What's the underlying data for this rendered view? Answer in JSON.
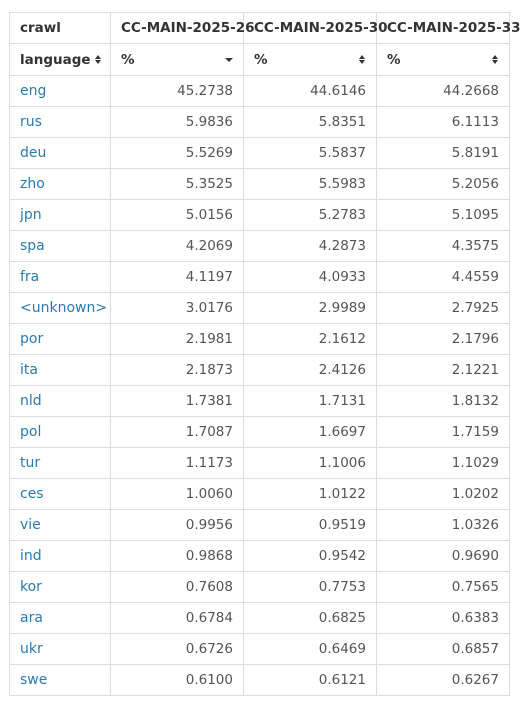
{
  "header": {
    "corner_label": "crawl",
    "row_label": "language",
    "columns": [
      "CC-MAIN-2025-26",
      "CC-MAIN-2025-30",
      "CC-MAIN-2025-33"
    ],
    "unit_label": "%",
    "sort_icon": "sort-both-icon",
    "dropdown_icon": "chevron-down-icon"
  },
  "rows": [
    {
      "lang": "eng",
      "v": [
        "45.2738",
        "44.6146",
        "44.2668"
      ]
    },
    {
      "lang": "rus",
      "v": [
        "5.9836",
        "5.8351",
        "6.1113"
      ]
    },
    {
      "lang": "deu",
      "v": [
        "5.5269",
        "5.5837",
        "5.8191"
      ]
    },
    {
      "lang": "zho",
      "v": [
        "5.3525",
        "5.5983",
        "5.2056"
      ]
    },
    {
      "lang": "jpn",
      "v": [
        "5.0156",
        "5.2783",
        "5.1095"
      ]
    },
    {
      "lang": "spa",
      "v": [
        "4.2069",
        "4.2873",
        "4.3575"
      ]
    },
    {
      "lang": "fra",
      "v": [
        "4.1197",
        "4.0933",
        "4.4559"
      ]
    },
    {
      "lang": "<unknown>",
      "v": [
        "3.0176",
        "2.9989",
        "2.7925"
      ]
    },
    {
      "lang": "por",
      "v": [
        "2.1981",
        "2.1612",
        "2.1796"
      ]
    },
    {
      "lang": "ita",
      "v": [
        "2.1873",
        "2.4126",
        "2.1221"
      ]
    },
    {
      "lang": "nld",
      "v": [
        "1.7381",
        "1.7131",
        "1.8132"
      ]
    },
    {
      "lang": "pol",
      "v": [
        "1.7087",
        "1.6697",
        "1.7159"
      ]
    },
    {
      "lang": "tur",
      "v": [
        "1.1173",
        "1.1006",
        "1.1029"
      ]
    },
    {
      "lang": "ces",
      "v": [
        "1.0060",
        "1.0122",
        "1.0202"
      ]
    },
    {
      "lang": "vie",
      "v": [
        "0.9956",
        "0.9519",
        "1.0326"
      ]
    },
    {
      "lang": "ind",
      "v": [
        "0.9868",
        "0.9542",
        "0.9690"
      ]
    },
    {
      "lang": "kor",
      "v": [
        "0.7608",
        "0.7753",
        "0.7565"
      ]
    },
    {
      "lang": "ara",
      "v": [
        "0.6784",
        "0.6825",
        "0.6383"
      ]
    },
    {
      "lang": "ukr",
      "v": [
        "0.6726",
        "0.6469",
        "0.6857"
      ]
    },
    {
      "lang": "swe",
      "v": [
        "0.6100",
        "0.6121",
        "0.6267"
      ]
    }
  ],
  "colors": {
    "link": "#2a7ab0",
    "border": "#dddddd",
    "text": "#333333"
  }
}
